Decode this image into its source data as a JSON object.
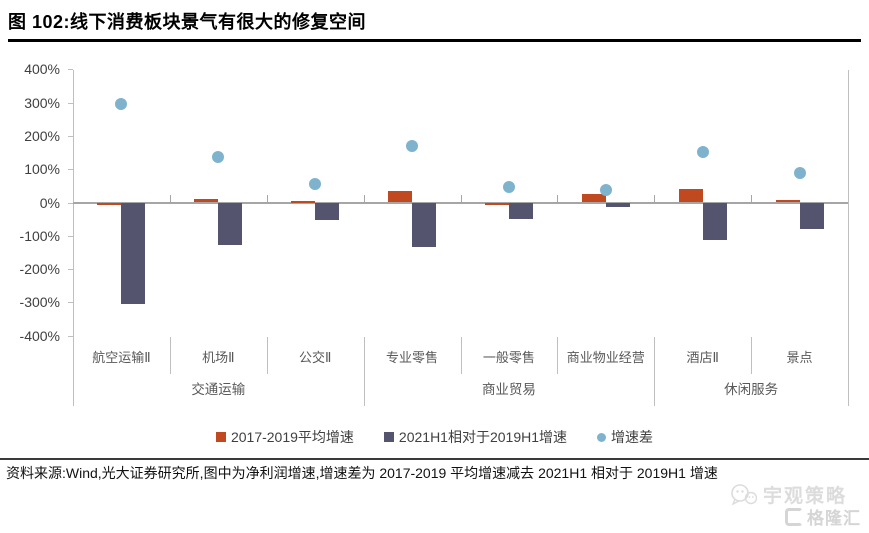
{
  "header": {
    "title": "图 102:线下消费板块景气有很大的修复空间"
  },
  "footer": {
    "source": "资料来源:Wind,光大证券研究所,图中为净利润增速,增速差为 2017-2019 平均增速减去 2021H1 相对于 2019H1 增速"
  },
  "watermarks": {
    "strategy": "宇观策略",
    "gelonghui": "格隆汇"
  },
  "chart_data": {
    "type": "bar",
    "title": "线下消费板块景气有很大的修复空间",
    "categories": [
      "航空运输Ⅱ",
      "机场Ⅱ",
      "公交Ⅱ",
      "专业零售",
      "一般零售",
      "商业物业经营",
      "酒店Ⅱ",
      "景点"
    ],
    "category_groups": [
      {
        "label": "交通运输",
        "span": 3
      },
      {
        "label": "商业贸易",
        "span": 3
      },
      {
        "label": "休闲服务",
        "span": 2
      }
    ],
    "series": [
      {
        "name": "2017-2019平均增速",
        "type": "bar",
        "color": "#c0491f",
        "values": [
          -8,
          10,
          4,
          35,
          -3,
          25,
          40,
          8
        ]
      },
      {
        "name": "2021H1相对于2019H1增速",
        "type": "bar",
        "color": "#55546e",
        "values": [
          -305,
          -127,
          -53,
          -135,
          -50,
          -13,
          -112,
          -80
        ]
      },
      {
        "name": "增速差",
        "type": "scatter",
        "color": "#7fb3cd",
        "values": [
          297,
          137,
          57,
          170,
          47,
          38,
          152,
          88
        ]
      }
    ],
    "y_axis": {
      "min": -400,
      "max": 400,
      "step": 100,
      "unit": "%",
      "tick_labels": [
        "400%",
        "300%",
        "200%",
        "100%",
        "0%",
        "-100%",
        "-200%",
        "-300%",
        "-400%"
      ]
    },
    "legend_position": "bottom",
    "grid": "off"
  }
}
